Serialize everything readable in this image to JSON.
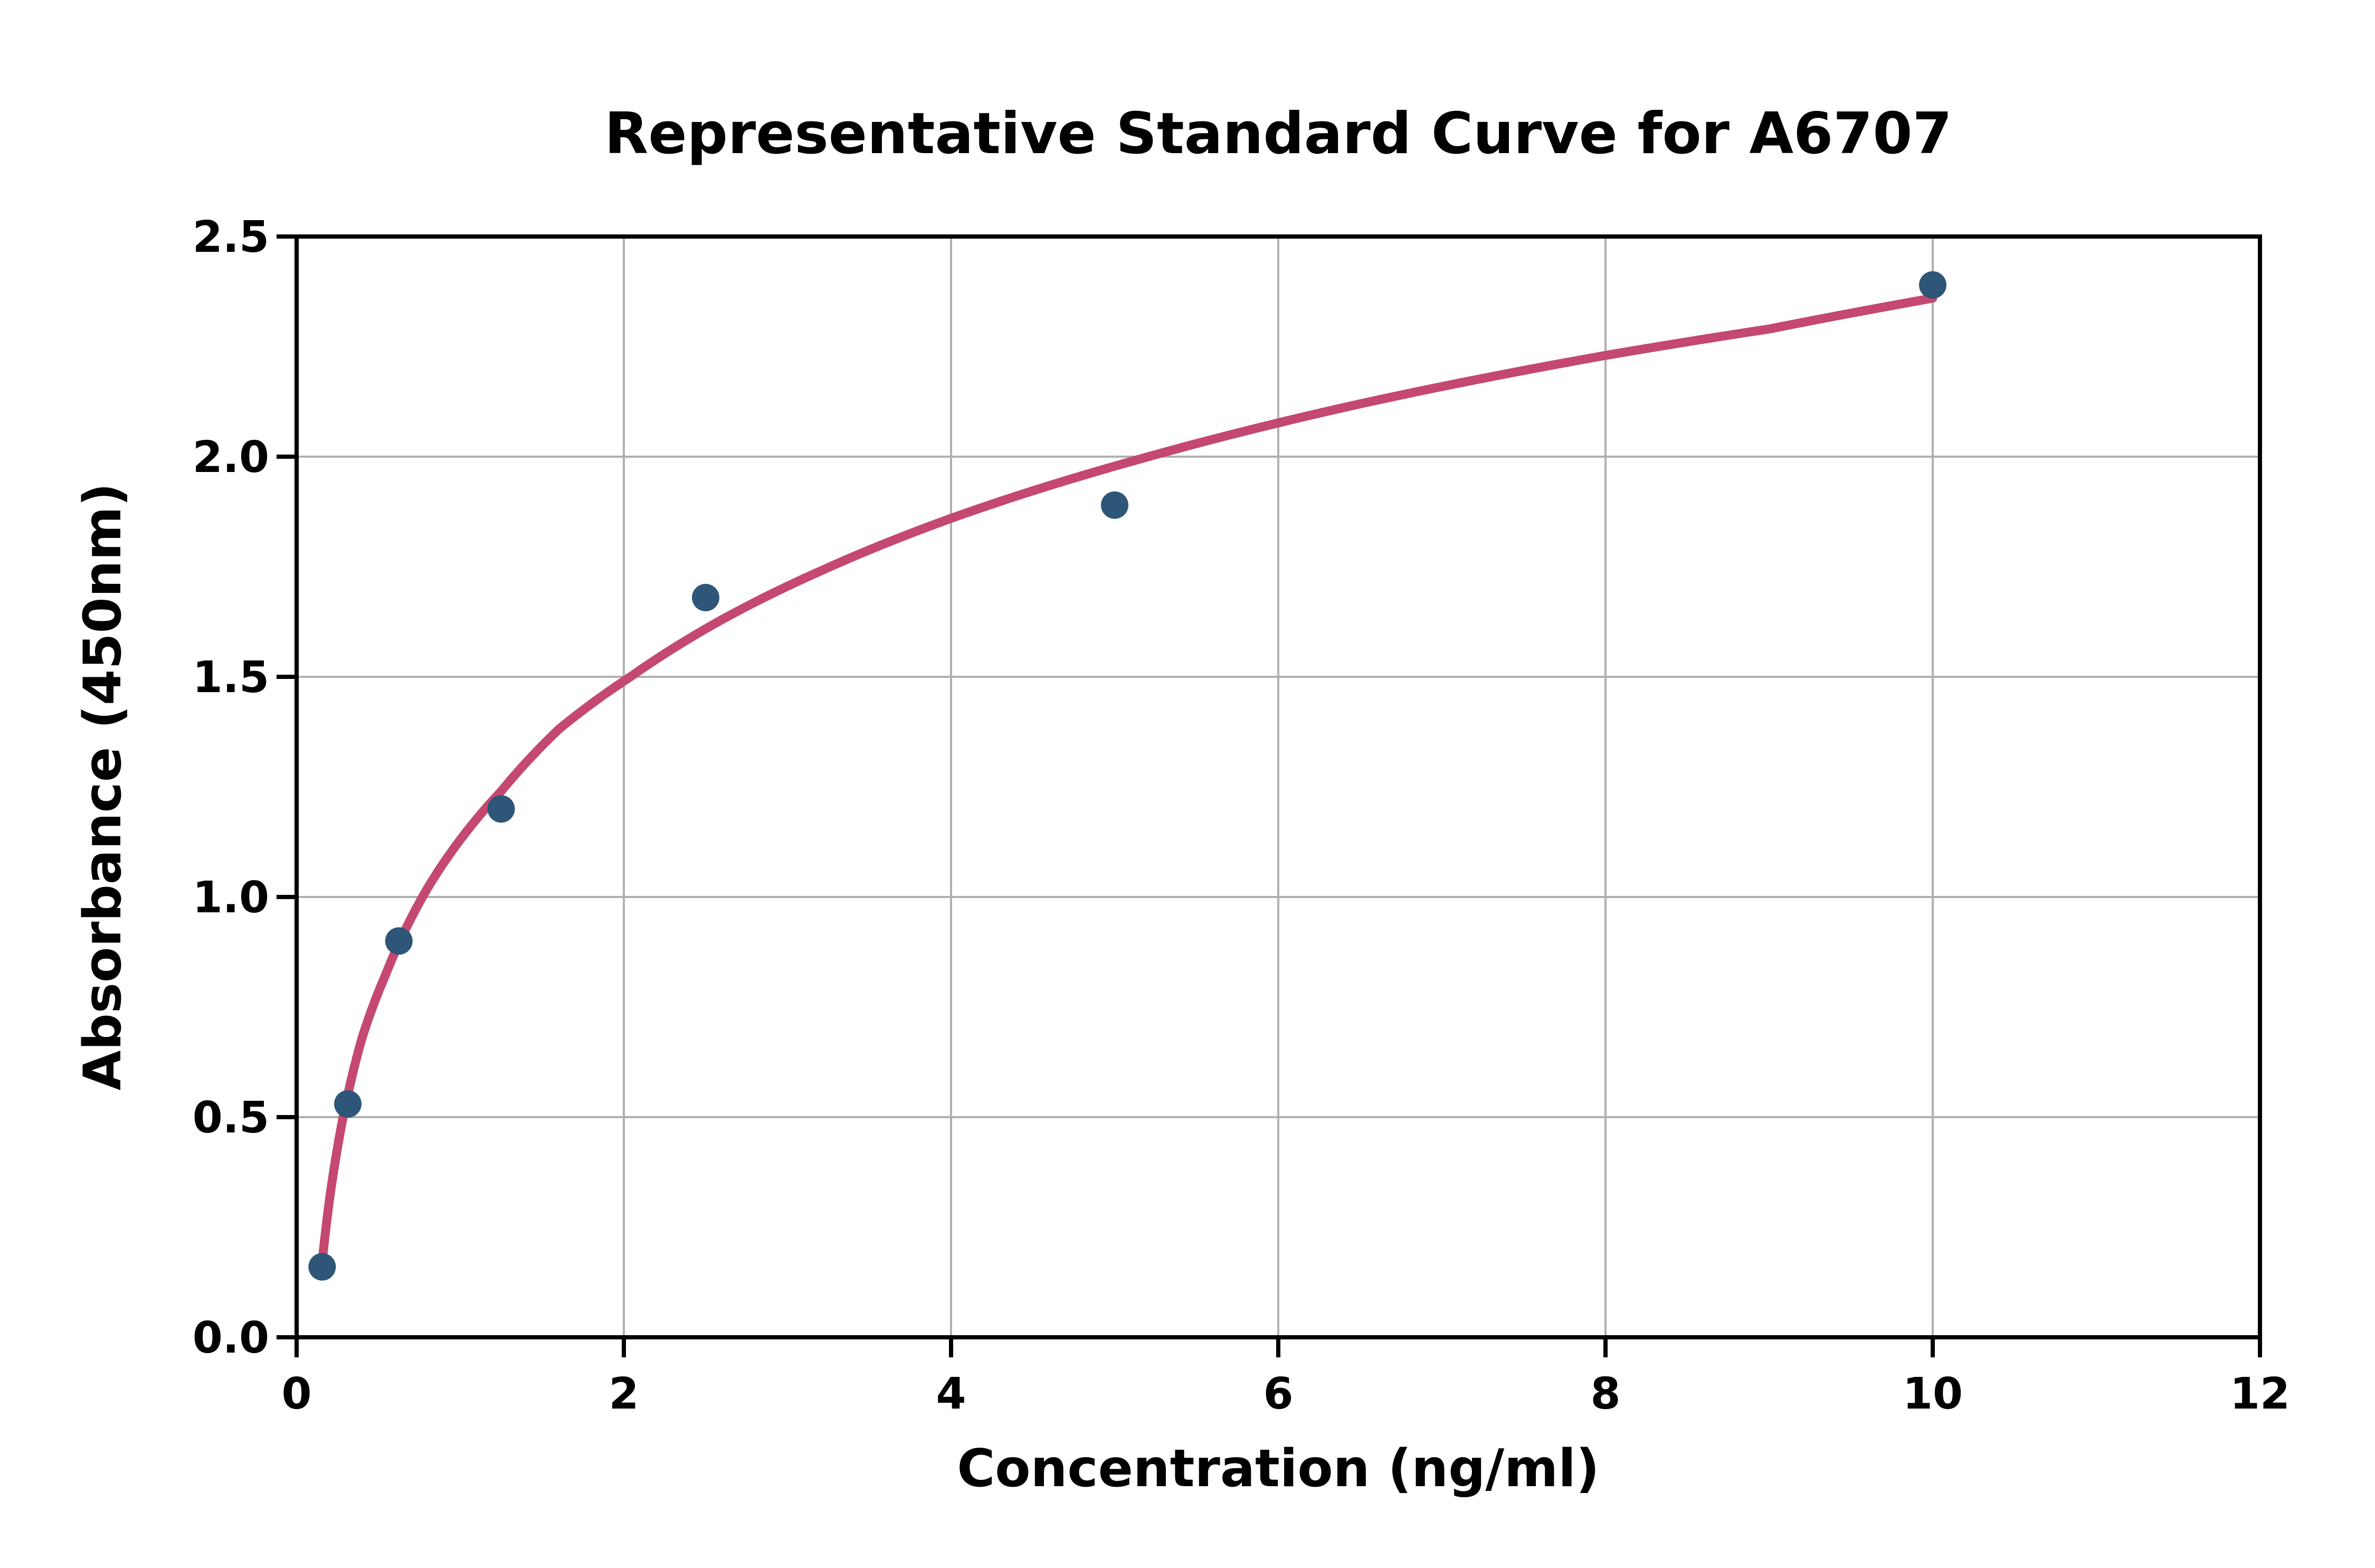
{
  "chart_data": {
    "type": "scatter",
    "title": "Representative Standard Curve for A6707",
    "xlabel": "Concentration (ng/ml)",
    "ylabel": "Absorbance (450nm)",
    "xlim": [
      0,
      12
    ],
    "ylim": [
      0,
      2.5
    ],
    "grid": true,
    "legend": "none",
    "xticks": [
      {
        "value": 0,
        "label": "0"
      },
      {
        "value": 2,
        "label": "2"
      },
      {
        "value": 4,
        "label": "4"
      },
      {
        "value": 6,
        "label": "6"
      },
      {
        "value": 8,
        "label": "8"
      },
      {
        "value": 10,
        "label": "10"
      },
      {
        "value": 12,
        "label": "12"
      }
    ],
    "yticks": [
      {
        "value": 0.0,
        "label": "0.0"
      },
      {
        "value": 0.5,
        "label": "0.5"
      },
      {
        "value": 1.0,
        "label": "1.0"
      },
      {
        "value": 1.5,
        "label": "1.5"
      },
      {
        "value": 2.0,
        "label": "2.0"
      },
      {
        "value": 2.5,
        "label": "2.5"
      }
    ],
    "series": [
      {
        "name": "standard-points",
        "style": "scatter",
        "points": [
          {
            "x": 0.156,
            "y": 0.16
          },
          {
            "x": 0.313,
            "y": 0.53
          },
          {
            "x": 0.625,
            "y": 0.9
          },
          {
            "x": 1.25,
            "y": 1.2
          },
          {
            "x": 2.5,
            "y": 1.68
          },
          {
            "x": 5,
            "y": 1.89
          },
          {
            "x": 10,
            "y": 2.39
          }
        ]
      },
      {
        "name": "fitted-curve",
        "style": "line",
        "fit": "logarithmic",
        "points": [
          {
            "x": 0.156,
            "y": 0.17
          },
          {
            "x": 0.2,
            "y": 0.31
          },
          {
            "x": 0.284,
            "y": 0.5
          },
          {
            "x": 0.4,
            "y": 0.68
          },
          {
            "x": 0.54,
            "y": 0.82
          },
          {
            "x": 0.8,
            "y": 1.02
          },
          {
            "x": 1.25,
            "y": 1.24
          },
          {
            "x": 1.6,
            "y": 1.38
          },
          {
            "x": 2.04,
            "y": 1.5
          },
          {
            "x": 2.6,
            "y": 1.63
          },
          {
            "x": 3.2,
            "y": 1.74
          },
          {
            "x": 4.0,
            "y": 1.86
          },
          {
            "x": 5.11,
            "y": 1.99
          },
          {
            "x": 6.5,
            "y": 2.12
          },
          {
            "x": 8.0,
            "y": 2.23
          },
          {
            "x": 9.0,
            "y": 2.29
          },
          {
            "x": 10.0,
            "y": 2.36
          }
        ]
      }
    ],
    "colors": {
      "point": "#2E5678",
      "curve": "#C4486F",
      "grid": "#B0B0B0",
      "axis": "#000000",
      "background": "#FFFFFF"
    }
  }
}
